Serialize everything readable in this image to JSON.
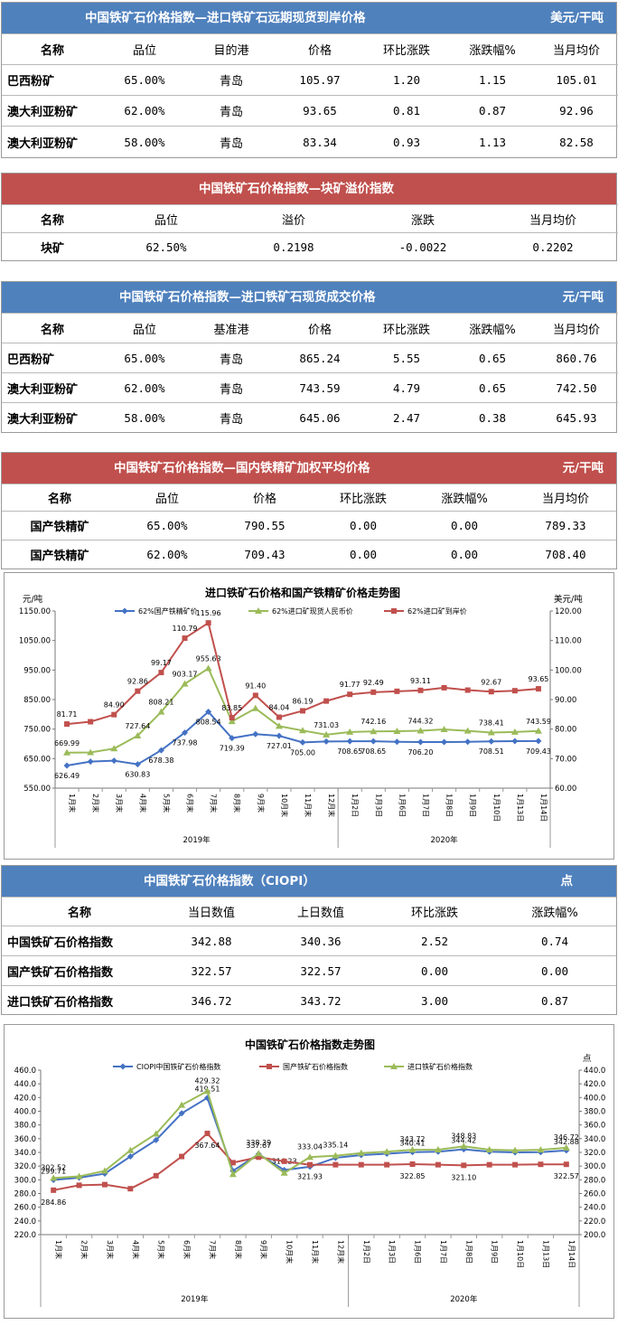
{
  "t1": {
    "title": "中国铁矿石价格指数—进口铁矿石远期现货到岸价格",
    "unit": "美元/干吨",
    "headers": [
      "名称",
      "品位",
      "目的港",
      "价格",
      "环比涨跌",
      "涨跌幅%",
      "当月均价"
    ],
    "rows": [
      [
        "巴西粉矿",
        "65.00%",
        "青岛",
        "105.97",
        "1.20",
        "1.15",
        "105.01"
      ],
      [
        "澳大利亚粉矿",
        "62.00%",
        "青岛",
        "93.65",
        "0.81",
        "0.87",
        "92.96"
      ],
      [
        "澳大利亚粉矿",
        "58.00%",
        "青岛",
        "83.34",
        "0.93",
        "1.13",
        "82.58"
      ]
    ]
  },
  "t2": {
    "title": "中国铁矿石价格指数—块矿溢价指数",
    "headers": [
      "名称",
      "品位",
      "溢价",
      "涨跌",
      "当月均价"
    ],
    "rows": [
      [
        "块矿",
        "62.50%",
        "0.2198",
        "-0.0022",
        "0.2202"
      ]
    ]
  },
  "t3": {
    "title": "中国铁矿石价格指数—进口铁矿石现货成交价格",
    "unit": "元/干吨",
    "headers": [
      "名称",
      "品位",
      "基准港",
      "价格",
      "环比涨跌",
      "涨跌幅%",
      "当月均价"
    ],
    "rows": [
      [
        "巴西粉矿",
        "65.00%",
        "青岛",
        "865.24",
        "5.55",
        "0.65",
        "860.76"
      ],
      [
        "澳大利亚粉矿",
        "62.00%",
        "青岛",
        "743.59",
        "4.79",
        "0.65",
        "742.50"
      ],
      [
        "澳大利亚粉矿",
        "58.00%",
        "青岛",
        "645.06",
        "2.47",
        "0.38",
        "645.93"
      ]
    ]
  },
  "t4": {
    "title": "中国铁矿石价格指数—国内铁精矿加权平均价格",
    "unit": "元/干吨",
    "headers": [
      "名称",
      "品位",
      "价格",
      "环比涨跌",
      "涨跌幅%",
      "当月均价"
    ],
    "rows": [
      [
        "国产铁精矿",
        "65.00%",
        "790.55",
        "0.00",
        "0.00",
        "789.33"
      ],
      [
        "国产铁精矿",
        "62.00%",
        "709.43",
        "0.00",
        "0.00",
        "708.40"
      ]
    ]
  },
  "t5": {
    "title": "中国铁矿石价格指数（CIOPI）",
    "unit": "点",
    "headers": [
      "名称",
      "当日数值",
      "上日数值",
      "环比涨跌",
      "涨跌幅%"
    ],
    "rows": [
      [
        "中国铁矿石价格指数",
        "342.88",
        "340.36",
        "2.52",
        "0.74"
      ],
      [
        "国产铁矿石价格指数",
        "322.57",
        "322.57",
        "0.00",
        "0.00"
      ],
      [
        "进口铁矿石价格指数",
        "346.72",
        "343.72",
        "3.00",
        "0.87"
      ]
    ]
  },
  "chart_data": [
    {
      "type": "line",
      "title": "进口铁矿石价格和国产铁精矿价格走势图",
      "ylabel_left": "元/吨",
      "ylabel_right": "美元/吨",
      "categories": [
        "1月末",
        "2月末",
        "3月末",
        "4月末",
        "5月末",
        "6月末",
        "7月末",
        "8月末",
        "9月末",
        "10月末",
        "11月末",
        "12月末",
        "1月2日",
        "1月3日",
        "1月6日",
        "1月7日",
        "1月8日",
        "1月9日",
        "1月10日",
        "1月13日",
        "1月14日"
      ],
      "groups": [
        {
          "label": "2019年",
          "from": 0,
          "to": 11
        },
        {
          "label": "2020年",
          "from": 12,
          "to": 20
        }
      ],
      "ylim_left": [
        550,
        1150
      ],
      "yticks_left": [
        550,
        650,
        750,
        850,
        950,
        1050,
        1150
      ],
      "ytick_labels_left": [
        "550.00",
        "650.00",
        "750.00",
        "850.00",
        "950.00",
        "1050.00",
        "1150.00"
      ],
      "ylim_right": [
        60,
        120
      ],
      "yticks_right": [
        60,
        70,
        80,
        90,
        100,
        110,
        120
      ],
      "ytick_labels_right": [
        "60.00",
        "70.00",
        "80.00",
        "90.00",
        "100.00",
        "110.00",
        "120.00"
      ],
      "legend": "top",
      "series": [
        {
          "name": "62%国产铁精矿价",
          "axis": "left",
          "color": "#4472c4",
          "marker": "diamond",
          "values": [
            626.49,
            640,
            643,
            630.83,
            678.38,
            737.98,
            808.54,
            719.39,
            733,
            727.01,
            705.0,
            708,
            708.65,
            708.65,
            707,
            706.2,
            706,
            707,
            708.51,
            709,
            709.43
          ],
          "labels": {
            "0": "626.49",
            "3": "630.83",
            "4": "678.38",
            "5": "737.98",
            "6": "808.54",
            "7": "719.39",
            "9": "727.01",
            "10": "705.00",
            "12": "708.65",
            "13": "708.65",
            "15": "706.20",
            "18": "708.51",
            "20": "709.43"
          }
        },
        {
          "name": "62%进口矿现货人民币价",
          "axis": "left",
          "color": "#9bbb59",
          "marker": "triangle",
          "values": [
            669.99,
            671,
            684,
            727.64,
            808.21,
            903.17,
            955.63,
            776,
            820,
            760,
            745,
            731.03,
            740,
            742.16,
            743,
            744.32,
            749,
            744,
            738.41,
            740,
            743.59
          ],
          "labels": {
            "0": "669.99",
            "3": "727.64",
            "4": "808.21",
            "5": "903.17",
            "6": "955.63",
            "11": "731.03",
            "13": "742.16",
            "15": "744.32",
            "18": "738.41",
            "20": "743.59"
          }
        },
        {
          "name": "62%进口矿到岸价",
          "axis": "right",
          "color": "#c0504d",
          "marker": "square",
          "values": [
            81.71,
            82.5,
            84.9,
            92.86,
            99.17,
            110.79,
            115.96,
            83.85,
            91.4,
            84.04,
            86.19,
            89.5,
            91.77,
            92.49,
            92.8,
            93.11,
            94,
            93.2,
            92.67,
            93.0,
            93.65
          ],
          "labels": {
            "0": "81.71",
            "2": "84.90",
            "3": "92.86",
            "4": "99.17",
            "5": "110.79",
            "6": "115.96",
            "7": "83.85",
            "8": "91.40",
            "9": "84.04",
            "10": "86.19",
            "12": "91.77",
            "13": "92.49",
            "15": "93.11",
            "18": "92.67",
            "20": "93.65"
          }
        }
      ]
    },
    {
      "type": "line",
      "title": "中国铁矿石价格指数走势图",
      "ylabel_right": "点",
      "categories": [
        "1月末",
        "2月末",
        "3月末",
        "4月末",
        "5月末",
        "6月末",
        "7月末",
        "8月末",
        "9月末",
        "10月末",
        "11月末",
        "12月末",
        "1月2日",
        "1月3日",
        "1月6日",
        "1月7日",
        "1月8日",
        "1月9日",
        "1月10日",
        "1月13日",
        "1月14日"
      ],
      "groups": [
        {
          "label": "2019年",
          "from": 0,
          "to": 11
        },
        {
          "label": "2020年",
          "from": 12,
          "to": 20
        }
      ],
      "ylim": [
        220,
        460
      ],
      "yticks": [
        220,
        240,
        260,
        280,
        300,
        320,
        340,
        360,
        380,
        400,
        420,
        440,
        460
      ],
      "ytick_labels": [
        "220.0",
        "240.0",
        "260.0",
        "280.0",
        "300.0",
        "320.0",
        "340.0",
        "360.0",
        "380.0",
        "400.0",
        "420.0",
        "440.0",
        "460.0"
      ],
      "ylim_right": [
        200,
        440
      ],
      "yticks_right": [
        200,
        220,
        240,
        260,
        280,
        300,
        320,
        340,
        360,
        380,
        400,
        420,
        440
      ],
      "ytick_labels_right": [
        "200.0",
        "220.0",
        "240.0",
        "260.0",
        "280.0",
        "300.0",
        "320.0",
        "340.0",
        "360.0",
        "380.0",
        "400.0",
        "420.0",
        "440.0"
      ],
      "legend": "top",
      "series": [
        {
          "name": "CIOPI中国铁矿石价格指数",
          "color": "#4472c4",
          "marker": "diamond",
          "values": [
            299.71,
            303,
            309,
            334,
            358,
            397,
            419.51,
            313,
            337.67,
            314.23,
            319,
            332,
            336,
            338,
            340.41,
            341,
            344.42,
            341,
            340,
            340.36,
            342.88
          ],
          "labels": {
            "0": "299.71",
            "6": "419.51",
            "8": "337.67",
            "9": "314.23",
            "14": "340.41",
            "16": "344.42",
            "20": "342.88"
          }
        },
        {
          "name": "国产铁矿石价格指数",
          "color": "#c0504d",
          "marker": "square",
          "values": [
            284.86,
            292,
            293,
            287,
            306,
            334,
            367.64,
            325,
            333,
            327,
            321.93,
            322,
            322,
            322,
            322.85,
            322,
            321.1,
            322,
            322,
            322.57,
            322.57
          ],
          "labels": {
            "0": "284.86",
            "6": "367.64",
            "10": "321.93",
            "14": "322.85",
            "16": "321.10",
            "20": "322.57"
          }
        },
        {
          "name": "进口铁矿石价格指数",
          "color": "#9bbb59",
          "marker": "triangle",
          "values": [
            302.52,
            305,
            313,
            343,
            367,
            409,
            429.32,
            308,
            338.39,
            310,
            333.04,
            335.14,
            339,
            341,
            343.72,
            344,
            348.83,
            344,
            343,
            343.72,
            346.72
          ],
          "labels": {
            "0": "302.52",
            "6": "429.32",
            "8": "338.39",
            "10": "333.04",
            "11": "335.14",
            "14": "343.72",
            "16": "348.83",
            "20": "346.72"
          }
        }
      ]
    }
  ]
}
